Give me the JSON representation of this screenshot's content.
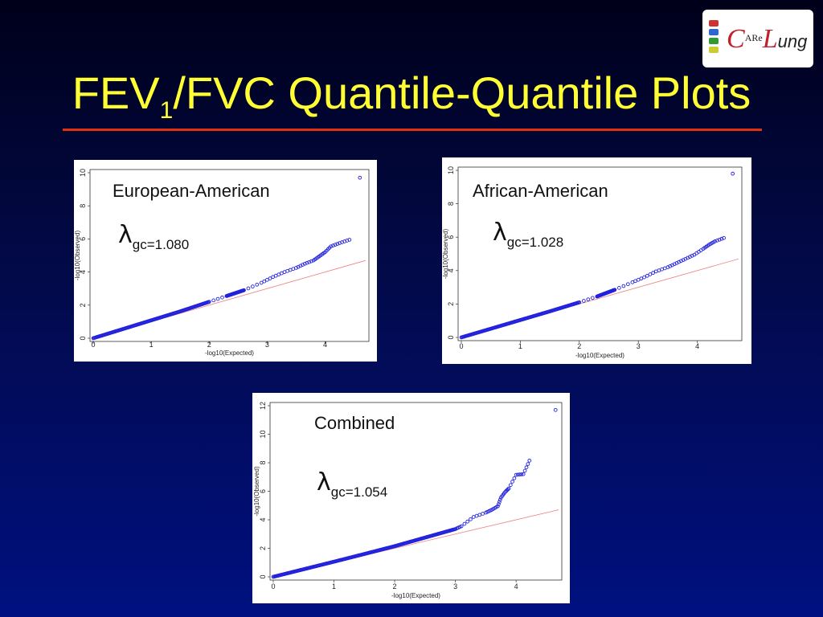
{
  "slide": {
    "title_main": "FEV",
    "title_sub": "1",
    "title_rest": "/FVC Quantile-Quantile Plots",
    "rule_color": "#e03010",
    "logo": {
      "c_letter": "C",
      "are": "ARe",
      "l_letter": "L",
      "ung": "ung"
    }
  },
  "chart_data": [
    {
      "type": "scatter",
      "title": "European-American",
      "lambda_symbol": "λ",
      "lambda_sub": "gc",
      "lambda_value": "=1.080",
      "xlabel": "-log10(Expected)",
      "ylabel": "-log10(Observed)",
      "xlim": [
        0,
        4.7
      ],
      "ylim": [
        0,
        10
      ],
      "xticks": [
        "0",
        "1",
        "2",
        "3",
        "4"
      ],
      "yticks": [
        "0",
        "2",
        "4",
        "6",
        "8",
        "10"
      ],
      "point_color": "#2222dd",
      "reference_line": {
        "slope": 1,
        "color": "#f08080"
      },
      "series": [
        {
          "values": [
            [
              0,
              0
            ],
            [
              0.5,
              0.54
            ],
            [
              1,
              1.08
            ],
            [
              1.5,
              1.62
            ],
            [
              2,
              2.2
            ],
            [
              2.3,
              2.55
            ],
            [
              2.6,
              2.9
            ],
            [
              2.9,
              3.35
            ],
            [
              3.1,
              3.7
            ],
            [
              3.3,
              4.0
            ],
            [
              3.5,
              4.25
            ],
            [
              3.65,
              4.5
            ],
            [
              3.8,
              4.7
            ],
            [
              3.9,
              4.95
            ],
            [
              4.0,
              5.2
            ],
            [
              4.1,
              5.55
            ],
            [
              4.25,
              5.75
            ],
            [
              4.42,
              5.95
            ],
            [
              4.6,
              9.7
            ]
          ]
        }
      ]
    },
    {
      "type": "scatter",
      "title": "African-American",
      "lambda_symbol": "λ",
      "lambda_sub": "gc",
      "lambda_value": "=1.028",
      "xlabel": "-log10(Expected)",
      "ylabel": "-log10(Observed)",
      "xlim": [
        0,
        4.7
      ],
      "ylim": [
        0,
        10
      ],
      "xticks": [
        "0",
        "1",
        "2",
        "3",
        "4"
      ],
      "yticks": [
        "0",
        "2",
        "4",
        "6",
        "8",
        "10"
      ],
      "point_color": "#2222dd",
      "reference_line": {
        "slope": 1,
        "color": "#f08080"
      },
      "series": [
        {
          "values": [
            [
              0,
              0
            ],
            [
              0.5,
              0.52
            ],
            [
              1,
              1.04
            ],
            [
              1.5,
              1.56
            ],
            [
              2,
              2.1
            ],
            [
              2.3,
              2.45
            ],
            [
              2.6,
              2.85
            ],
            [
              2.9,
              3.3
            ],
            [
              3.1,
              3.6
            ],
            [
              3.3,
              3.95
            ],
            [
              3.5,
              4.2
            ],
            [
              3.65,
              4.45
            ],
            [
              3.8,
              4.7
            ],
            [
              3.95,
              4.95
            ],
            [
              4.1,
              5.3
            ],
            [
              4.2,
              5.55
            ],
            [
              4.3,
              5.75
            ],
            [
              4.45,
              5.95
            ],
            [
              4.6,
              9.8
            ]
          ]
        }
      ]
    },
    {
      "type": "scatter",
      "title": "Combined",
      "lambda_symbol": "λ",
      "lambda_sub": "gc",
      "lambda_value": "=1.054",
      "xlabel": "-log10(Expected)",
      "ylabel": "-log10(Observed)",
      "xlim": [
        0,
        4.7
      ],
      "ylim": [
        0,
        12
      ],
      "xticks": [
        "0",
        "1",
        "2",
        "3",
        "4"
      ],
      "yticks": [
        "0",
        "2",
        "4",
        "6",
        "8",
        "10",
        "12"
      ],
      "point_color": "#2222dd",
      "reference_line": {
        "slope": 1,
        "color": "#f08080"
      },
      "series": [
        {
          "values": [
            [
              0,
              0
            ],
            [
              0.5,
              0.53
            ],
            [
              1,
              1.06
            ],
            [
              1.5,
              1.6
            ],
            [
              2,
              2.15
            ],
            [
              2.5,
              2.75
            ],
            [
              3.0,
              3.35
            ],
            [
              3.1,
              3.55
            ],
            [
              3.3,
              4.2
            ],
            [
              3.5,
              4.5
            ],
            [
              3.6,
              4.7
            ],
            [
              3.7,
              4.95
            ],
            [
              3.75,
              5.55
            ],
            [
              3.82,
              5.95
            ],
            [
              3.88,
              6.2
            ],
            [
              4.0,
              7.15
            ],
            [
              4.12,
              7.2
            ],
            [
              4.22,
              8.15
            ],
            [
              4.65,
              11.7
            ]
          ]
        }
      ]
    }
  ]
}
